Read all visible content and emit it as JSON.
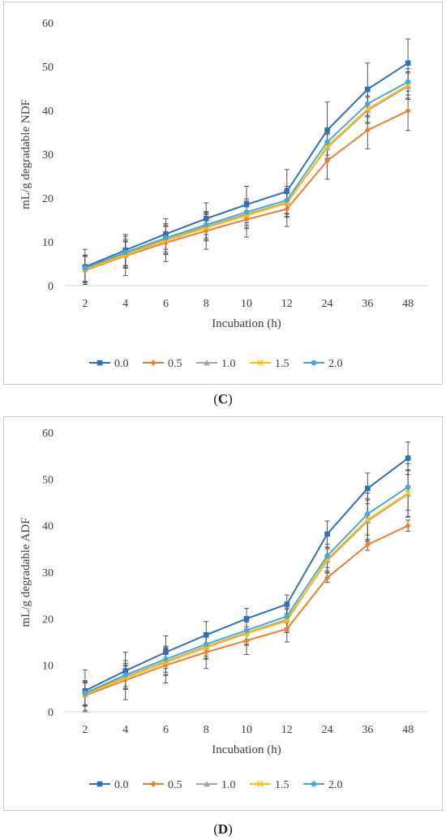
{
  "chart_data": [
    {
      "type": "line",
      "categories": [
        "2",
        "4",
        "6",
        "8",
        "10",
        "12",
        "24",
        "36",
        "48"
      ],
      "xlabel": "Incubation (h)",
      "ylabel": "mL/g degradable NDF",
      "ylim": [
        0,
        60
      ],
      "yticks": [
        0,
        10,
        20,
        30,
        40,
        50,
        60
      ],
      "legend_position": "bottom",
      "grid": false,
      "caption_prefix": "(",
      "caption_letter": "C",
      "caption_suffix": ")",
      "series": [
        {
          "name": "0.0",
          "color": "#2f6fbf",
          "marker": "square",
          "values": [
            4.3,
            8.1,
            11.8,
            15.3,
            18.5,
            21.5,
            35.5,
            44.8,
            50.8
          ],
          "errors": [
            4.0,
            3.6,
            3.5,
            3.6,
            4.2,
            5.0,
            6.4,
            6.0,
            5.5
          ]
        },
        {
          "name": "0.5",
          "color": "#ed7d31",
          "marker": "diamond",
          "values": [
            3.5,
            6.8,
            9.8,
            12.5,
            15.1,
            17.5,
            28.5,
            35.5,
            39.9
          ],
          "errors": [
            3.2,
            4.5,
            4.3,
            4.2,
            4.0,
            4.0,
            4.2,
            4.3,
            4.5
          ]
        },
        {
          "name": "1.0",
          "color": "#a5a5a5",
          "marker": "triangle",
          "values": [
            3.8,
            7.2,
            10.5,
            13.5,
            16.3,
            19.0,
            31.5,
            40.0,
            45.5
          ],
          "errors": [
            3.0,
            3.0,
            3.2,
            3.0,
            3.0,
            3.2,
            3.0,
            3.0,
            3.0
          ]
        },
        {
          "name": "1.5",
          "color": "#ffc000",
          "marker": "x",
          "values": [
            3.7,
            7.0,
            10.3,
            13.2,
            16.0,
            18.8,
            31.8,
            40.3,
            45.8
          ],
          "errors": [
            3.0,
            3.0,
            3.2,
            3.0,
            3.0,
            3.2,
            3.0,
            3.0,
            3.0
          ]
        },
        {
          "name": "2.0",
          "color": "#4aa8d8",
          "marker": "circle",
          "values": [
            4.0,
            7.6,
            10.9,
            13.9,
            16.8,
            19.5,
            32.8,
            41.5,
            46.5
          ],
          "errors": [
            3.0,
            3.0,
            3.2,
            3.0,
            3.0,
            3.2,
            3.0,
            3.0,
            3.0
          ]
        }
      ]
    },
    {
      "type": "line",
      "categories": [
        "2",
        "4",
        "6",
        "8",
        "10",
        "12",
        "24",
        "36",
        "48"
      ],
      "xlabel": "Incubation (h)",
      "ylabel": "mL/g degradable ADF",
      "ylim": [
        0,
        60
      ],
      "yticks": [
        0,
        10,
        20,
        30,
        40,
        50,
        60
      ],
      "legend_position": "bottom",
      "grid": false,
      "caption_prefix": "(",
      "caption_letter": "D",
      "caption_suffix": ")",
      "series": [
        {
          "name": "0.0",
          "color": "#2f6fbf",
          "marker": "square",
          "values": [
            4.5,
            8.8,
            12.8,
            16.5,
            20.0,
            23.1,
            38.2,
            48.0,
            54.5
          ],
          "errors": [
            4.5,
            4.0,
            3.5,
            2.9,
            2.2,
            2.0,
            2.8,
            3.3,
            3.5
          ]
        },
        {
          "name": "0.5",
          "color": "#ed7d31",
          "marker": "diamond",
          "values": [
            3.5,
            6.8,
            10.0,
            12.8,
            15.3,
            17.8,
            28.8,
            35.9,
            40.0
          ],
          "errors": [
            3.2,
            4.2,
            3.8,
            3.5,
            3.0,
            2.8,
            1.0,
            1.2,
            1.2
          ]
        },
        {
          "name": "1.0",
          "color": "#a5a5a5",
          "marker": "triangle",
          "values": [
            3.8,
            7.5,
            10.8,
            14.0,
            17.0,
            19.8,
            32.5,
            41.0,
            46.8
          ],
          "errors": [
            2.5,
            2.5,
            2.8,
            2.5,
            2.5,
            2.5,
            2.5,
            4.5,
            5.0
          ]
        },
        {
          "name": "1.5",
          "color": "#ffc000",
          "marker": "x",
          "values": [
            3.7,
            7.3,
            10.6,
            13.8,
            16.8,
            19.5,
            32.8,
            41.3,
            47.0
          ],
          "errors": [
            2.5,
            2.5,
            2.8,
            2.5,
            2.5,
            2.5,
            2.5,
            4.5,
            5.0
          ]
        },
        {
          "name": "2.0",
          "color": "#4aa8d8",
          "marker": "circle",
          "values": [
            4.0,
            7.9,
            11.3,
            14.5,
            17.5,
            20.5,
            33.5,
            42.5,
            48.3
          ],
          "errors": [
            2.5,
            2.5,
            2.8,
            2.5,
            2.5,
            2.5,
            2.5,
            4.5,
            5.0
          ]
        }
      ]
    }
  ]
}
